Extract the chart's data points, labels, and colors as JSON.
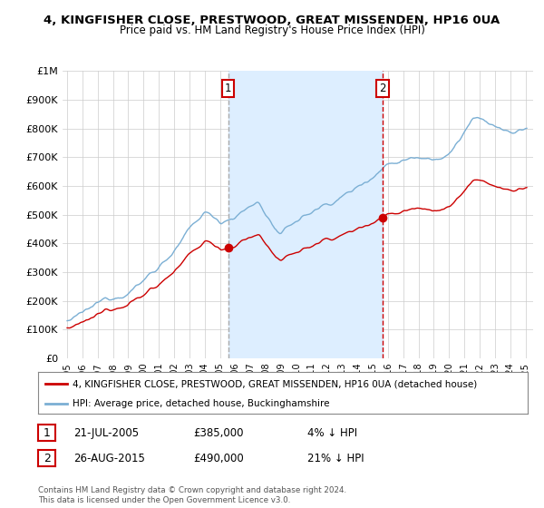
{
  "title": "4, KINGFISHER CLOSE, PRESTWOOD, GREAT MISSENDEN, HP16 0UA",
  "subtitle": "Price paid vs. HM Land Registry's House Price Index (HPI)",
  "legend_line1": "4, KINGFISHER CLOSE, PRESTWOOD, GREAT MISSENDEN, HP16 0UA (detached house)",
  "legend_line2": "HPI: Average price, detached house, Buckinghamshire",
  "footer": "Contains HM Land Registry data © Crown copyright and database right 2024.\nThis data is licensed under the Open Government Licence v3.0.",
  "annotation1_date": "21-JUL-2005",
  "annotation1_price": "£385,000",
  "annotation1_hpi": "4% ↓ HPI",
  "annotation2_date": "26-AUG-2015",
  "annotation2_price": "£490,000",
  "annotation2_hpi": "21% ↓ HPI",
  "sale_color": "#cc0000",
  "hpi_color": "#7bafd4",
  "hpi_fill_color": "#ddeeff",
  "vline1_color": "#aaaaaa",
  "vline2_color": "#cc0000",
  "sale_dot_color": "#cc0000",
  "ylim": [
    0,
    1000000
  ],
  "ytick_labels": [
    "£0",
    "£100K",
    "£200K",
    "£300K",
    "£400K",
    "£500K",
    "£600K",
    "£700K",
    "£800K",
    "£900K",
    "£1M"
  ],
  "sale1_x": 2005.54,
  "sale1_y": 385000,
  "sale2_x": 2015.65,
  "sale2_y": 490000,
  "xmin": 1994.7,
  "xmax": 2025.5,
  "bg_color": "#ffffff",
  "grid_color": "#cccccc"
}
